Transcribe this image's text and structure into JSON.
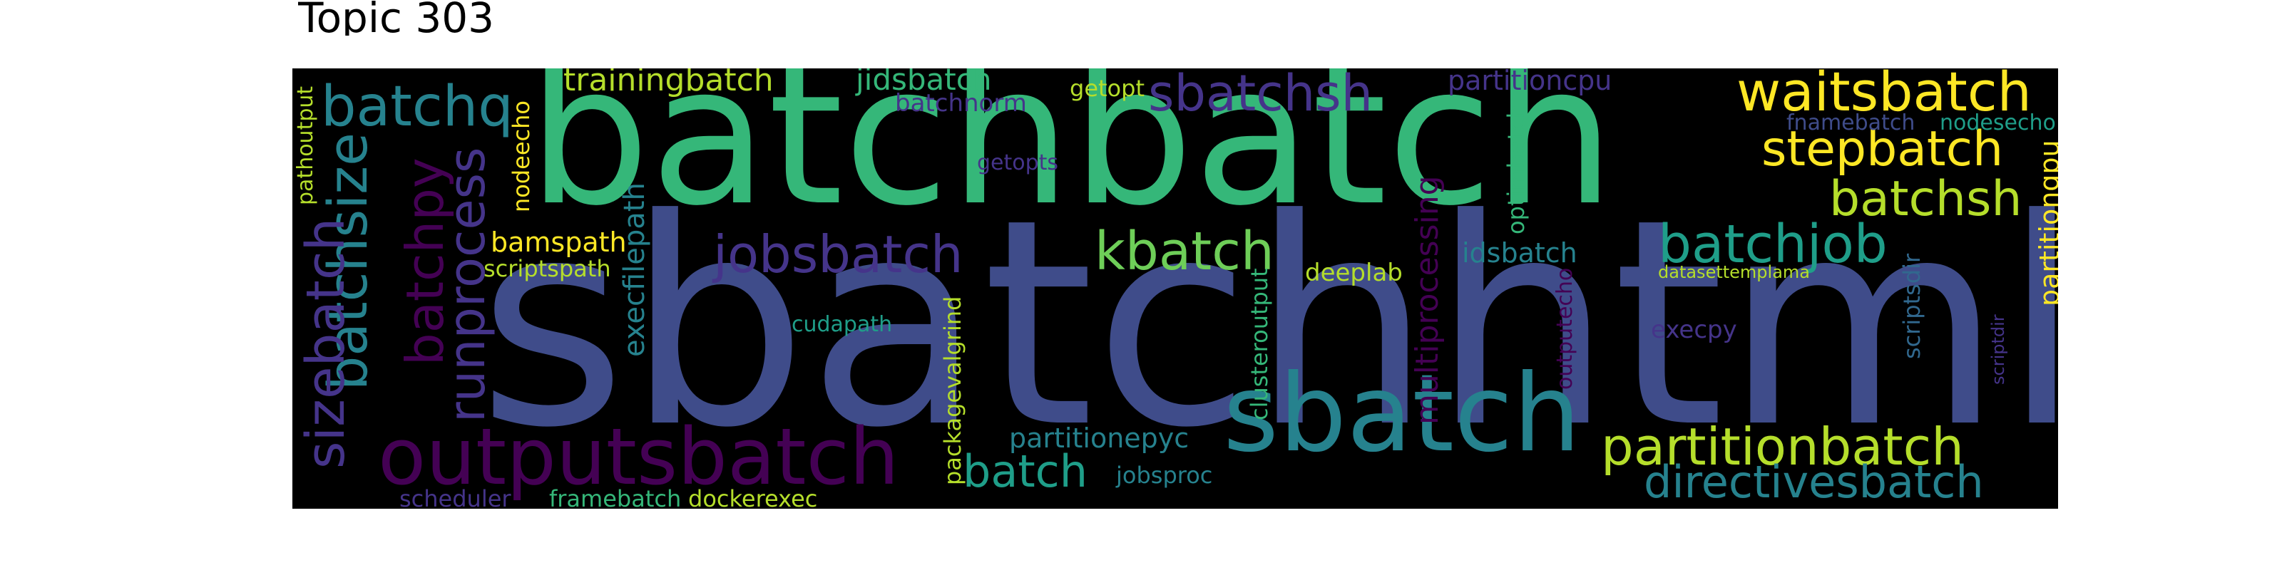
{
  "title": "Topic 303",
  "colors": {
    "background": "#000000",
    "palette": [
      "#45348a",
      "#3f4c8a",
      "#31688e",
      "#26828e",
      "#1f9e89",
      "#35b779",
      "#6ece58",
      "#b5de2b",
      "#fde725",
      "#440154"
    ]
  },
  "words": [
    "batchbatch",
    "sbatchhtml",
    "sbatch",
    "outputsbatch",
    "batchq",
    "batchsize",
    "sizebatch",
    "batchpy",
    "runprocess",
    "jobsbatch",
    "kbatch",
    "batchjob",
    "waitsbatch",
    "stepbatch",
    "batchsh",
    "partitionbatch",
    "directivesbatch",
    "sbatchsh",
    "trainingbatch",
    "jidsbatch",
    "batchnorm",
    "getopt",
    "getopts",
    "partitioncpu",
    "fnamebatch",
    "nodesecho",
    "nodeecho",
    "pathoutput",
    "bamspath",
    "scriptspath",
    "execfilepath",
    "cudapath",
    "multiprocessing",
    "optimbatch",
    "deeplab",
    "idsbatch",
    "datasettemplama",
    "clusteroutput",
    "packagevalgrind",
    "partitionepyc",
    "batch",
    "jobsproc",
    "outputecho",
    "execpy",
    "scriptsdir",
    "scriptdir",
    "partitiongpu",
    "scheduler",
    "framebatch",
    "dockerexec"
  ]
}
